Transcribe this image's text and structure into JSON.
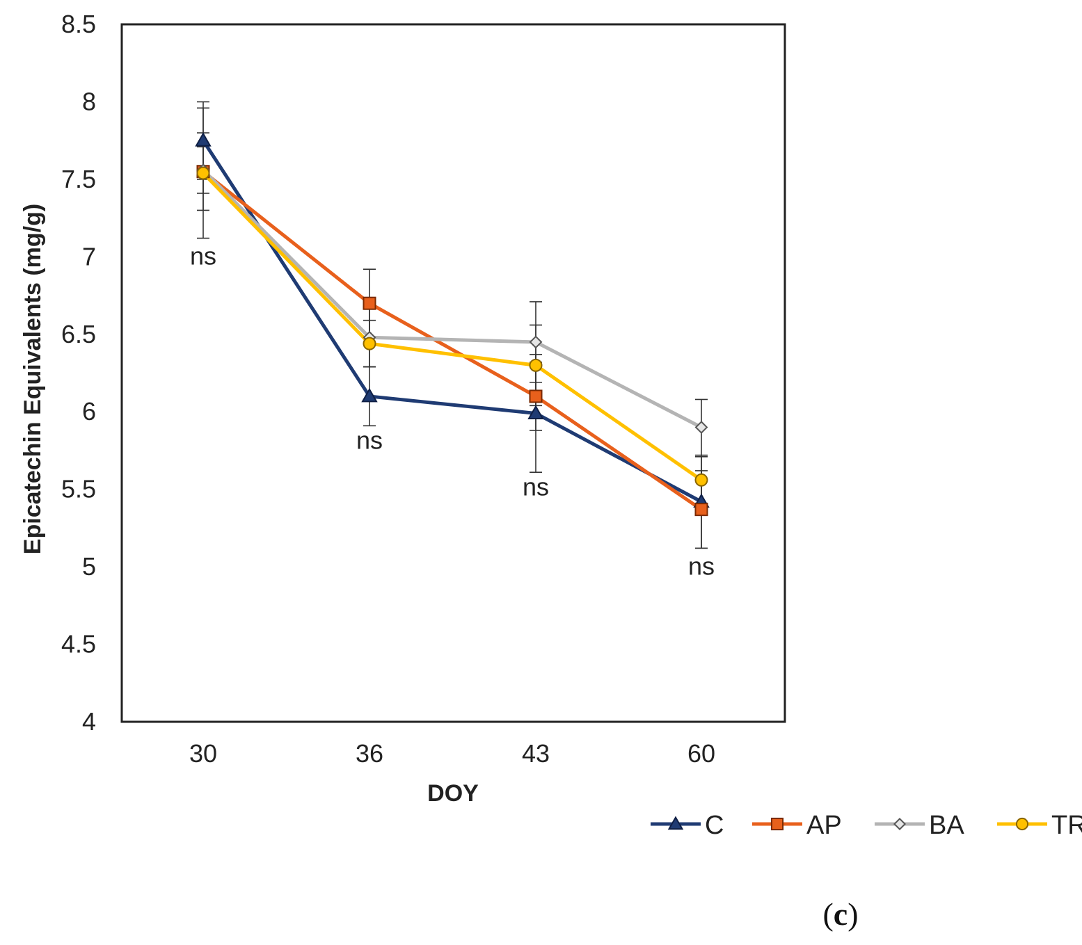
{
  "chart_data": {
    "type": "line",
    "categories": [
      "30",
      "36",
      "43",
      "60"
    ],
    "xlabel": "DOY",
    "ylabel": "Epicatechin Equivalents (mg/g)",
    "ylim": [
      4,
      8.5
    ],
    "yticks": [
      "4",
      "4.5",
      "5",
      "5.5",
      "6",
      "6.5",
      "7",
      "7.5",
      "8",
      "8.5"
    ],
    "series": [
      {
        "name": "C",
        "color": "#1f3b73",
        "marker": "triangle",
        "values": [
          7.75,
          6.1,
          5.99,
          5.42
        ],
        "err": [
          0.25,
          0.19,
          0.38,
          0.3
        ]
      },
      {
        "name": "AP",
        "color": "#e8601c",
        "marker": "square",
        "values": [
          7.55,
          6.7,
          6.1,
          5.37
        ],
        "err": [
          0.25,
          0.22,
          0.22,
          0.25
        ]
      },
      {
        "name": "BA",
        "color": "#b4b4b4",
        "marker": "diamond",
        "values": [
          7.56,
          6.48,
          6.45,
          5.9
        ],
        "err": [
          0.15,
          0.19,
          0.26,
          0.18
        ]
      },
      {
        "name": "TR",
        "color": "#ffc000",
        "marker": "circle",
        "values": [
          7.54,
          6.44,
          6.3,
          5.56
        ],
        "err": [
          0.42,
          0.15,
          0.26,
          0.15
        ]
      }
    ],
    "annotations": [
      {
        "category": "30",
        "y": 6.95,
        "text": "ns"
      },
      {
        "category": "36",
        "y": 5.76,
        "text": "ns"
      },
      {
        "category": "43",
        "y": 5.46,
        "text": "ns"
      },
      {
        "category": "60",
        "y": 4.95,
        "text": "ns"
      }
    ],
    "legend_position": "bottom-right",
    "grid": false
  },
  "panel_label": {
    "open": "(",
    "letter": "c",
    "close": ")"
  }
}
